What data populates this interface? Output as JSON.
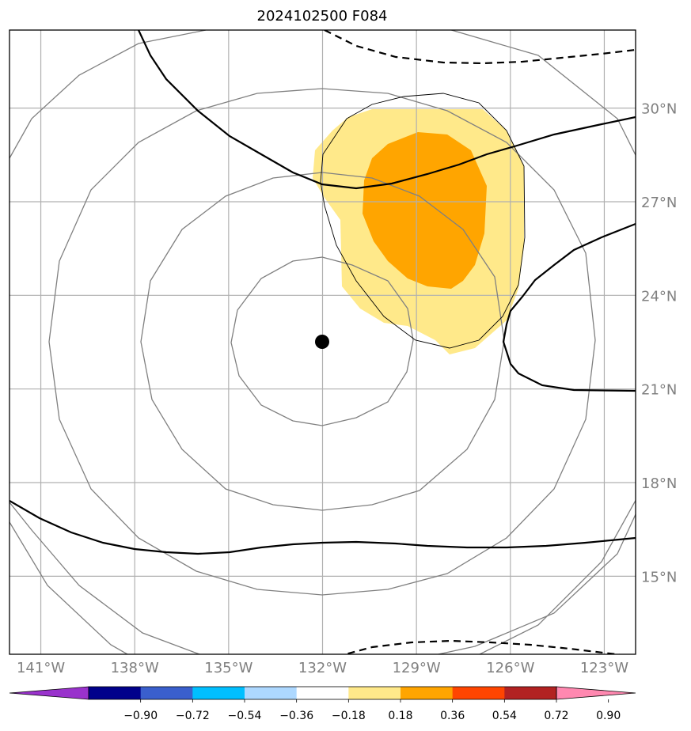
{
  "title": "2024102500 F084",
  "map": {
    "projection_bounds": {
      "lon": [
        -142.0,
        -122.0
      ],
      "lat": [
        12.5,
        32.5
      ]
    },
    "lon_ticks": [
      {
        "value": -141,
        "label": "141°W"
      },
      {
        "value": -138,
        "label": "138°W"
      },
      {
        "value": -135,
        "label": "135°W"
      },
      {
        "value": -132,
        "label": "132°W"
      },
      {
        "value": -129,
        "label": "129°W"
      },
      {
        "value": -126,
        "label": "126°W"
      },
      {
        "value": -123,
        "label": "123°W"
      }
    ],
    "lat_ticks": [
      {
        "value": 30,
        "label": "30°N"
      },
      {
        "value": 27,
        "label": "27°N"
      },
      {
        "value": 24,
        "label": "24°N"
      },
      {
        "value": 21,
        "label": "21°N"
      },
      {
        "value": 18,
        "label": "18°N"
      },
      {
        "value": 15,
        "label": "15°N"
      }
    ],
    "center_marker": {
      "lon": -132.0,
      "lat": 22.0
    },
    "range_rings_deg": [
      2.7,
      5.4,
      8.1,
      10.8,
      13.5
    ],
    "colors": {
      "grid": "#b0b0b0",
      "rings": "#808080",
      "contour": "#000000",
      "fill_0_18_0_36": "#ffe98a",
      "fill_0_36_0_54": "#ffa500"
    }
  },
  "colorbar": {
    "labels": [
      "−0.90",
      "−0.72",
      "−0.54",
      "−0.36",
      "−0.18",
      "0.18",
      "0.36",
      "0.54",
      "0.72",
      "0.90"
    ],
    "colors": [
      "#9932cc",
      "#00008b",
      "#3a5fcd",
      "#00bfff",
      "#add8ff",
      "#ffffff",
      "#ffe98a",
      "#ffa500",
      "#ff4500",
      "#b22222",
      "#ff88b0"
    ]
  }
}
